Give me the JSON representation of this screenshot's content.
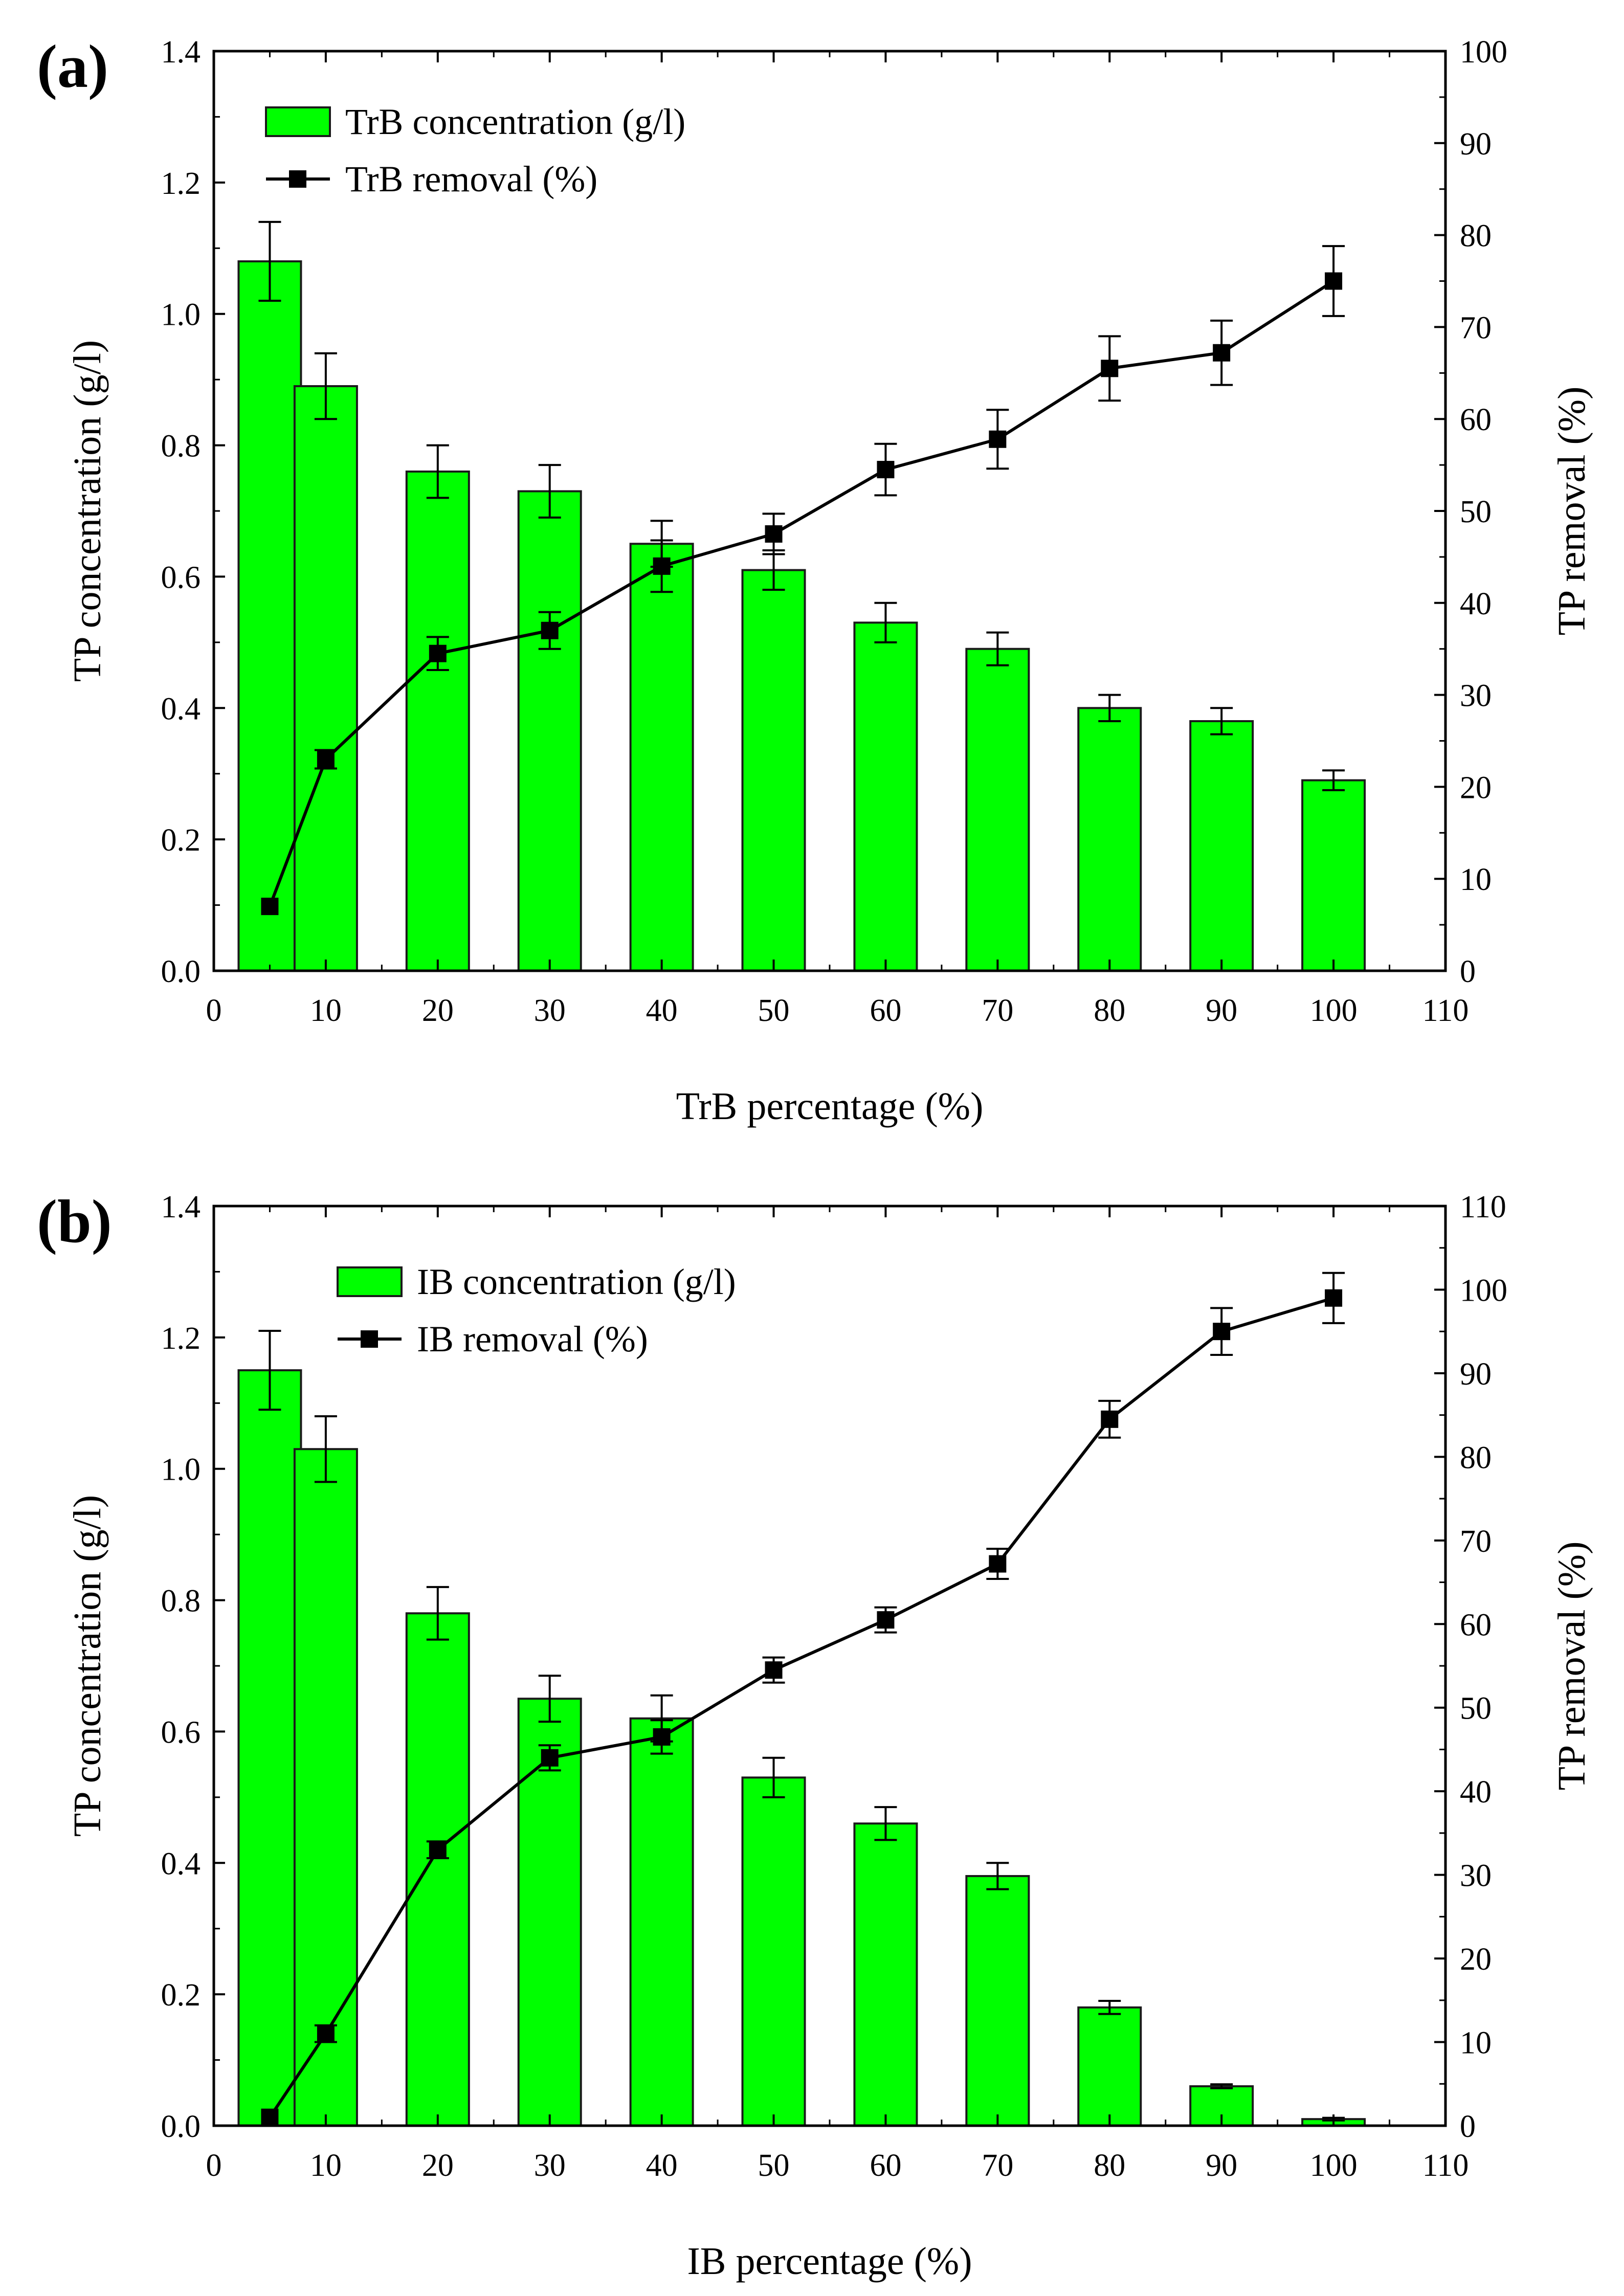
{
  "chart_data": [
    {
      "panel_label": "(a)",
      "type": "bar",
      "xlabel": "TrB percentage (%)",
      "ylabel": "TP concentration (g/l)",
      "y2label": "TP removal (%)",
      "xlim": [
        0,
        110
      ],
      "ylim": [
        0.0,
        1.4
      ],
      "y2lim": [
        0,
        100
      ],
      "x_ticks": [
        "0",
        "10",
        "20",
        "30",
        "40",
        "50",
        "60",
        "70",
        "80",
        "90",
        "100",
        "110"
      ],
      "y_ticks": [
        "0.0",
        "0.2",
        "0.4",
        "0.6",
        "0.8",
        "1.0",
        "1.2",
        "1.4"
      ],
      "y2_ticks": [
        "0",
        "10",
        "20",
        "30",
        "40",
        "50",
        "60",
        "70",
        "80",
        "90",
        "100"
      ],
      "legend": {
        "position": "top-left",
        "bar_label": "TrB concentration (g/l)",
        "line_label": "TrB removal (%)"
      },
      "bars": {
        "name": "TrB concentration (g/l)",
        "color": "#00ff00",
        "x": [
          5,
          10,
          20,
          30,
          40,
          50,
          60,
          70,
          80,
          90,
          100
        ],
        "values": [
          1.08,
          0.89,
          0.76,
          0.73,
          0.65,
          0.61,
          0.53,
          0.49,
          0.4,
          0.38,
          0.29
        ],
        "errors": [
          0.06,
          0.05,
          0.04,
          0.04,
          0.035,
          0.03,
          0.03,
          0.025,
          0.02,
          0.02,
          0.015
        ]
      },
      "line": {
        "name": "TrB removal (%)",
        "color": "#000000",
        "x": [
          5,
          10,
          20,
          30,
          40,
          50,
          60,
          70,
          80,
          90,
          100
        ],
        "values": [
          7,
          23,
          34.5,
          37,
          44,
          47.5,
          54.5,
          57.8,
          65.5,
          67.2,
          75
        ],
        "errors": [
          0,
          1,
          1.8,
          2,
          2.8,
          2.2,
          2.8,
          3.2,
          3.5,
          3.5,
          3.8
        ]
      }
    },
    {
      "panel_label": "(b)",
      "type": "bar",
      "xlabel": "IB percentage (%)",
      "ylabel": "TP concentration (g/l)",
      "y2label": "TP removal (%)",
      "xlim": [
        0,
        110
      ],
      "ylim": [
        0.0,
        1.4
      ],
      "y2lim": [
        0,
        110
      ],
      "x_ticks": [
        "0",
        "10",
        "20",
        "30",
        "40",
        "50",
        "60",
        "70",
        "80",
        "90",
        "100",
        "110"
      ],
      "y_ticks": [
        "0.0",
        "0.2",
        "0.4",
        "0.6",
        "0.8",
        "1.0",
        "1.2",
        "1.4"
      ],
      "y2_ticks": [
        "0",
        "10",
        "20",
        "30",
        "40",
        "50",
        "60",
        "70",
        "80",
        "90",
        "100",
        "110"
      ],
      "legend": {
        "position": "top-center",
        "bar_label": "IB concentration (g/l)",
        "line_label": "IB removal (%)"
      },
      "bars": {
        "name": "IB concentration (g/l)",
        "color": "#00ff00",
        "x": [
          5,
          10,
          20,
          30,
          40,
          50,
          60,
          70,
          80,
          90,
          100
        ],
        "values": [
          1.15,
          1.03,
          0.78,
          0.65,
          0.62,
          0.53,
          0.46,
          0.38,
          0.18,
          0.06,
          0.01
        ],
        "errors": [
          0.06,
          0.05,
          0.04,
          0.035,
          0.035,
          0.03,
          0.025,
          0.02,
          0.01,
          0.003,
          0.002
        ]
      },
      "line": {
        "name": "IB removal (%)",
        "color": "#000000",
        "x": [
          5,
          10,
          20,
          30,
          40,
          50,
          60,
          70,
          80,
          90,
          100
        ],
        "values": [
          1,
          11,
          33,
          44,
          46.5,
          54.5,
          60.5,
          67.2,
          84.5,
          95,
          99
        ],
        "errors": [
          0,
          1,
          1,
          1.5,
          2,
          1.5,
          1.5,
          1.8,
          2.2,
          2.8,
          3
        ]
      }
    }
  ]
}
